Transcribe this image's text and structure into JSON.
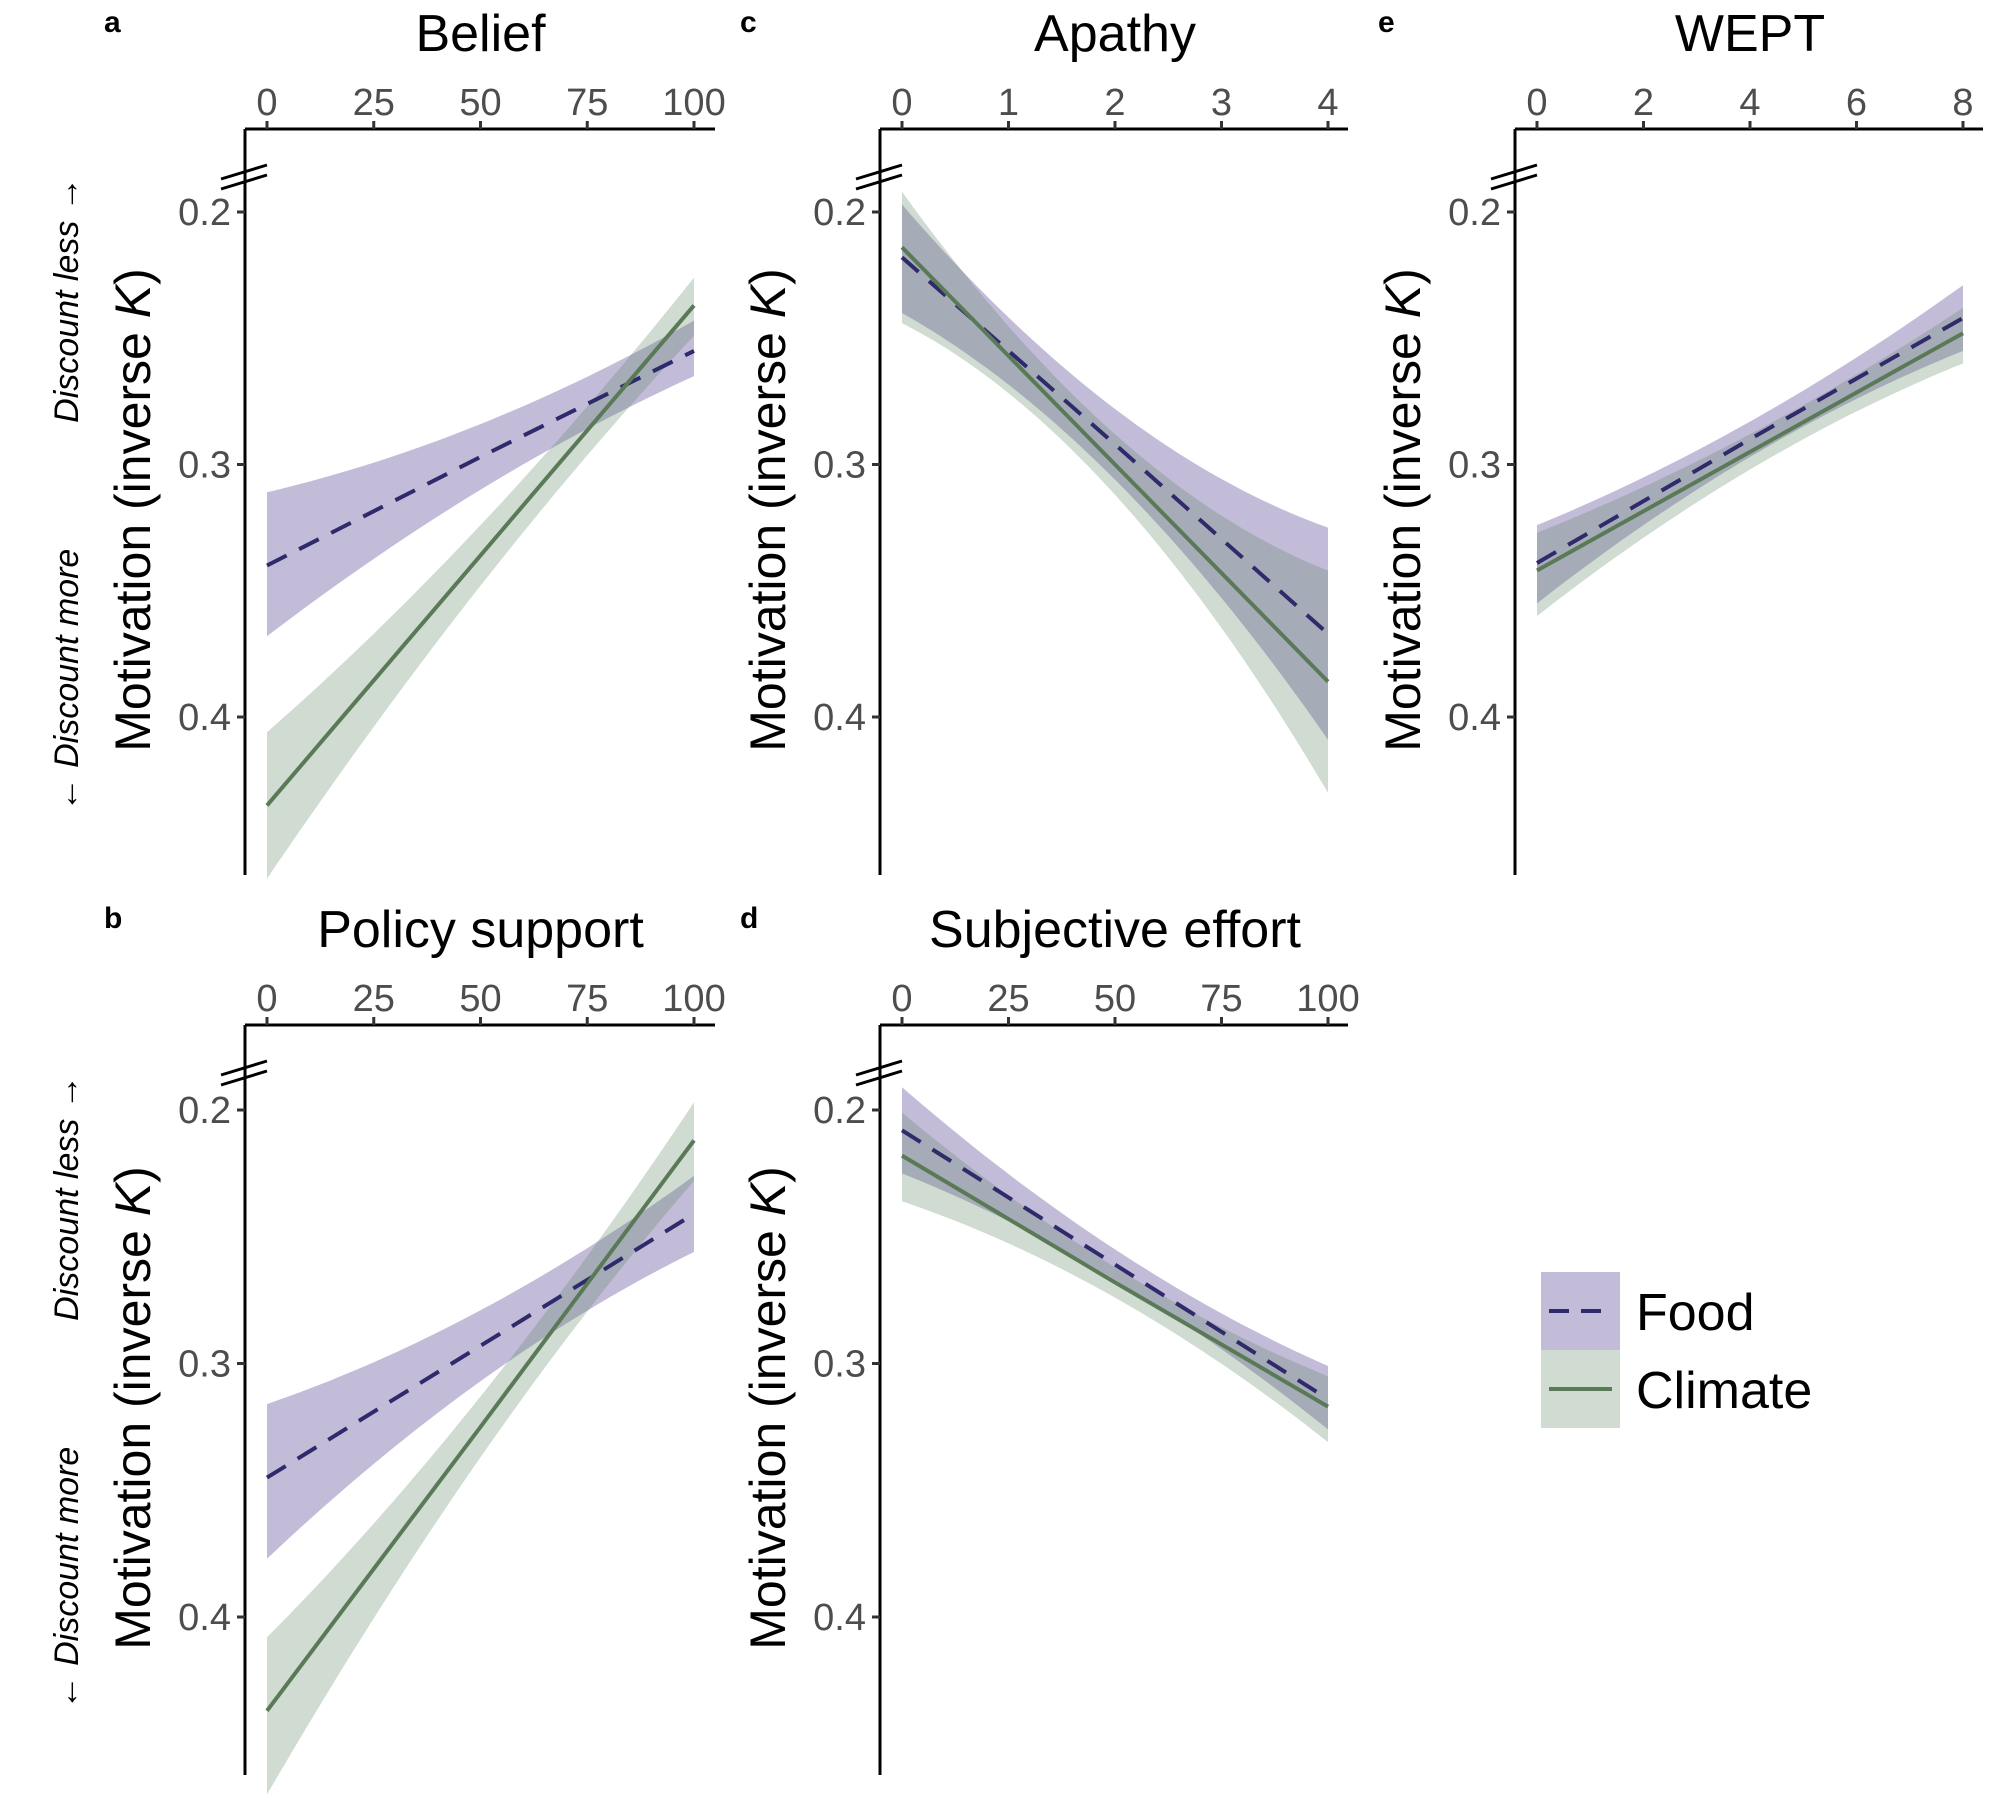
{
  "y_label": {
    "prefix": "Motivation (inverse ",
    "italic": "K",
    "suffix": ")"
  },
  "direction_labels": {
    "more": "← Discount more",
    "less": "Discount less →"
  },
  "colors": {
    "food_fill": "#6e5fa5",
    "food_line": "#2e2a6b",
    "climate_fill": "#64876a",
    "climate_line": "#5a7a57"
  },
  "legend": [
    {
      "name": "Food",
      "line": "dashed"
    },
    {
      "name": "Climate",
      "line": "solid"
    }
  ],
  "chart_data": [
    {
      "panel": "a",
      "type": "line",
      "title": "Belief",
      "xticks": [
        "0",
        "25",
        "50",
        "75",
        "100"
      ],
      "xlim": [
        0,
        100
      ],
      "yticks": [
        "0.2",
        "0.3",
        "0.4"
      ],
      "ylim": [
        0.167,
        0.4626
      ],
      "y_reversed": true,
      "axis_break": true,
      "series": [
        {
          "name": "Food",
          "x": [
            0,
            50,
            100
          ],
          "y": [
            0.34,
            0.297,
            0.255
          ],
          "lo": [
            0.311,
            0.284,
            0.243
          ],
          "hi": [
            0.368,
            0.31,
            0.265
          ]
        },
        {
          "name": "Climate",
          "x": [
            0,
            50,
            100
          ],
          "y": [
            0.435,
            0.336,
            0.237
          ],
          "lo": [
            0.406,
            0.324,
            0.226
          ],
          "hi": [
            0.464,
            0.348,
            0.249
          ]
        }
      ]
    },
    {
      "panel": "b",
      "type": "line",
      "title": "Policy support",
      "xticks": [
        "0",
        "25",
        "50",
        "75",
        "100"
      ],
      "xlim": [
        0,
        100
      ],
      "yticks": [
        "0.2",
        "0.3",
        "0.4"
      ],
      "ylim": [
        0.167,
        0.4626
      ],
      "y_reversed": true,
      "axis_break": true,
      "series": [
        {
          "name": "Food",
          "x": [
            0,
            50,
            100
          ],
          "y": [
            0.345,
            0.293,
            0.241
          ],
          "lo": [
            0.316,
            0.279,
            0.226
          ],
          "hi": [
            0.377,
            0.307,
            0.256
          ]
        },
        {
          "name": "Climate",
          "x": [
            0,
            50,
            100
          ],
          "y": [
            0.437,
            0.325,
            0.212
          ],
          "lo": [
            0.408,
            0.313,
            0.197
          ],
          "hi": [
            0.47,
            0.337,
            0.228
          ]
        }
      ]
    },
    {
      "panel": "c",
      "type": "line",
      "title": "Apathy",
      "xticks": [
        "0",
        "1",
        "2",
        "3",
        "4"
      ],
      "xlim": [
        0,
        4
      ],
      "yticks": [
        "0.2",
        "0.3",
        "0.4"
      ],
      "ylim": [
        0.167,
        0.4626
      ],
      "y_reversed": true,
      "axis_break": true,
      "series": [
        {
          "name": "Food",
          "x": [
            0,
            2,
            4
          ],
          "y": [
            0.218,
            0.292,
            0.367
          ],
          "lo": [
            0.197,
            0.278,
            0.325
          ],
          "hi": [
            0.24,
            0.306,
            0.409
          ]
        },
        {
          "name": "Climate",
          "x": [
            0,
            2,
            4
          ],
          "y": [
            0.214,
            0.3,
            0.386
          ],
          "lo": [
            0.192,
            0.288,
            0.342
          ],
          "hi": [
            0.244,
            0.312,
            0.43
          ]
        }
      ]
    },
    {
      "panel": "d",
      "type": "line",
      "title": "Subjective effort",
      "xticks": [
        "0",
        "25",
        "50",
        "75",
        "100"
      ],
      "xlim": [
        0,
        100
      ],
      "yticks": [
        "0.2",
        "0.3",
        "0.4"
      ],
      "ylim": [
        0.167,
        0.4626
      ],
      "y_reversed": true,
      "axis_break": true,
      "series": [
        {
          "name": "Food",
          "x": [
            0,
            50,
            100
          ],
          "y": [
            0.208,
            0.261,
            0.314
          ],
          "lo": [
            0.191,
            0.255,
            0.301
          ],
          "hi": [
            0.225,
            0.267,
            0.326
          ]
        },
        {
          "name": "Climate",
          "x": [
            0,
            50,
            100
          ],
          "y": [
            0.218,
            0.268,
            0.317
          ],
          "lo": [
            0.201,
            0.262,
            0.305
          ],
          "hi": [
            0.236,
            0.274,
            0.331
          ]
        }
      ]
    },
    {
      "panel": "e",
      "type": "line",
      "title": "WEPT",
      "xticks": [
        "0",
        "2",
        "4",
        "6",
        "8"
      ],
      "xlim": [
        0,
        8
      ],
      "yticks": [
        "0.2",
        "0.3",
        "0.4"
      ],
      "ylim": [
        0.167,
        0.4626
      ],
      "y_reversed": true,
      "axis_break": true,
      "series": [
        {
          "name": "Food",
          "x": [
            0,
            4,
            8
          ],
          "y": [
            0.339,
            0.29,
            0.242
          ],
          "lo": [
            0.324,
            0.283,
            0.229
          ],
          "hi": [
            0.355,
            0.297,
            0.255
          ]
        },
        {
          "name": "Climate",
          "x": [
            0,
            4,
            8
          ],
          "y": [
            0.342,
            0.295,
            0.248
          ],
          "lo": [
            0.327,
            0.288,
            0.238
          ],
          "hi": [
            0.36,
            0.302,
            0.26
          ]
        }
      ]
    }
  ]
}
